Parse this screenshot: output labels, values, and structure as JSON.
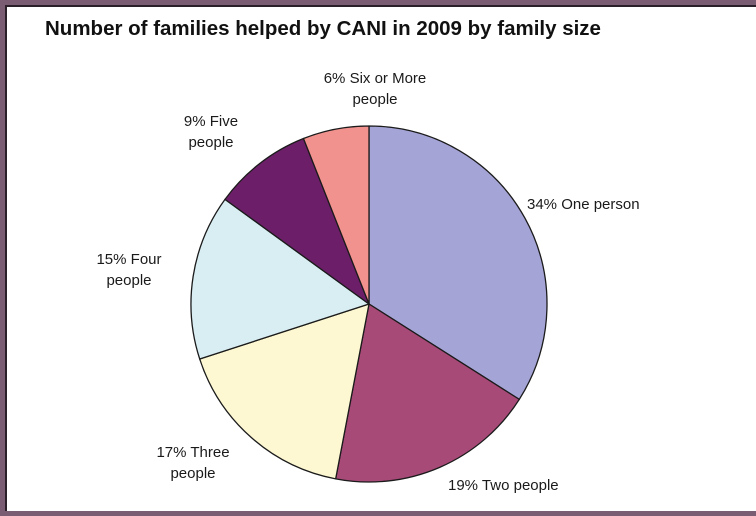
{
  "chart_data": {
    "type": "pie",
    "title": "Number of families helped by CANI in 2009 by family size",
    "slices": [
      {
        "label_lines": [
          "34% One person"
        ],
        "value": 34,
        "color": "#a5a4d6"
      },
      {
        "label_lines": [
          "19% Two people"
        ],
        "value": 19,
        "color": "#a84a78"
      },
      {
        "label_lines": [
          "17% Three",
          "people"
        ],
        "value": 17,
        "color": "#fdf8d2"
      },
      {
        "label_lines": [
          "15% Four",
          "people"
        ],
        "value": 15,
        "color": "#d9eef3"
      },
      {
        "label_lines": [
          "9% Five",
          "people"
        ],
        "value": 9,
        "color": "#6c1f68"
      },
      {
        "label_lines": [
          "6% Six or More",
          "people"
        ],
        "value": 6,
        "color": "#f2928e"
      }
    ],
    "start": "12 o'clock",
    "direction": "clockwise"
  }
}
